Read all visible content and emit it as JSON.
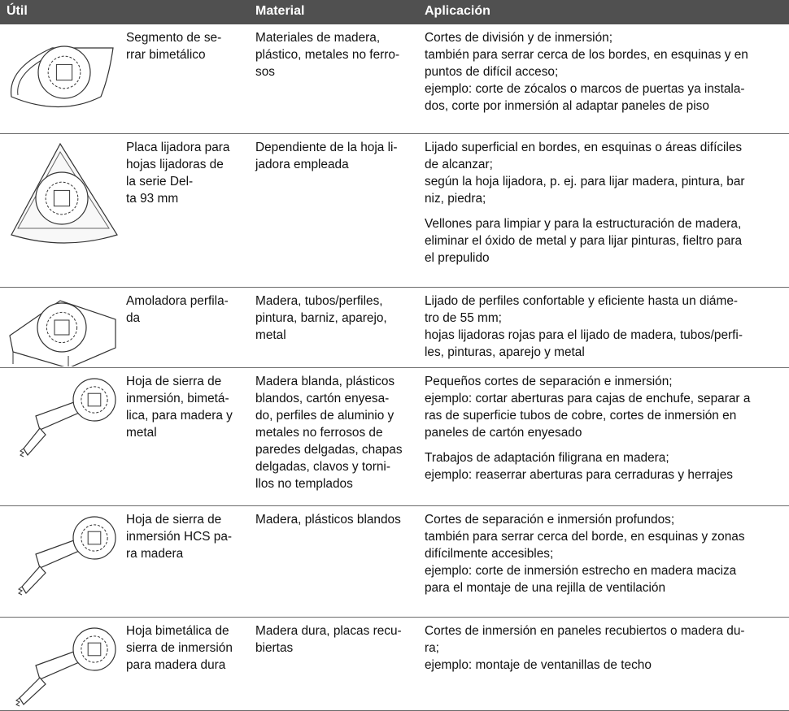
{
  "header": {
    "columns": [
      "Útil",
      "Material",
      "Aplicación"
    ]
  },
  "rows": [
    {
      "name": [
        "Segmento de se-",
        "rrar bimetálico"
      ],
      "material": [
        "Materiales de madera,",
        "plástico, metales no ferro-",
        "sos"
      ],
      "application": [
        [
          "Cortes de división y de inmersión;",
          "también para serrar cerca de los bordes, en esquinas y en",
          "puntos de difícil acceso;",
          "ejemplo: corte de zócalos o marcos de puertas ya instala-",
          "dos, corte por inmersión al adaptar paneles de piso"
        ]
      ]
    },
    {
      "name": [
        "Placa lijadora para",
        "hojas lijadoras de",
        "la serie Del-",
        "ta 93 mm"
      ],
      "material": [
        "Dependiente de la hoja li-",
        "jadora empleada"
      ],
      "application": [
        [
          "Lijado superficial en bordes, en esquinas o áreas difíciles",
          "de alcanzar;",
          "según la hoja lijadora, p. ej. para lijar madera, pintura, bar",
          "niz, piedra;"
        ],
        [
          "Vellones para limpiar y para la estructuración de madera,",
          "eliminar el óxido de metal y para lijar pinturas, fieltro para",
          "el prepulido"
        ]
      ]
    },
    {
      "name": [
        "Amoladora perfila-",
        "da"
      ],
      "material": [
        "Madera, tubos/perfiles,",
        "pintura, barniz, aparejo,",
        "metal"
      ],
      "application": [
        [
          "Lijado de perfiles confortable y eficiente hasta un diáme-",
          "tro de 55 mm;",
          "hojas lijadoras rojas para el lijado de madera, tubos/perfi-",
          "les, pinturas, aparejo y metal"
        ]
      ]
    },
    {
      "name": [
        "Hoja de sierra de",
        "inmersión, bimetá-",
        "lica, para madera y",
        "metal"
      ],
      "material": [
        "Madera blanda, plásticos",
        "blandos, cartón enyesa-",
        "do, perfiles de aluminio y",
        "metales no ferrosos de",
        "paredes delgadas, chapas",
        "delgadas, clavos y torni-",
        "llos no templados"
      ],
      "application": [
        [
          "Pequeños cortes de separación e inmersión;",
          "ejemplo: cortar aberturas para cajas de enchufe, separar a",
          "ras de superficie tubos de cobre, cortes de inmersión en",
          "paneles de cartón enyesado"
        ],
        [
          "Trabajos de adaptación filigrana en madera;",
          "ejemplo: reaserrar aberturas para cerraduras y herrajes"
        ]
      ]
    },
    {
      "name": [
        "Hoja de sierra de",
        "inmersión HCS pa-",
        "ra madera"
      ],
      "material": [
        "Madera, plásticos blandos"
      ],
      "application": [
        [
          "Cortes de separación e inmersión profundos;",
          "también para serrar cerca del borde, en esquinas y zonas",
          "difícilmente accesibles;",
          "ejemplo: corte de inmersión estrecho en madera maciza",
          "para el montaje de una rejilla de ventilación"
        ]
      ]
    },
    {
      "name": [
        "Hoja bimetálica de",
        "sierra de inmersión",
        "para madera dura"
      ],
      "material": [
        "Madera dura, placas recu-",
        "biertas"
      ],
      "application": [
        [
          "Cortes de inmersión en paneles recubiertos o madera du-",
          "ra;",
          "ejemplo: montaje de ventanillas de techo"
        ]
      ]
    }
  ]
}
